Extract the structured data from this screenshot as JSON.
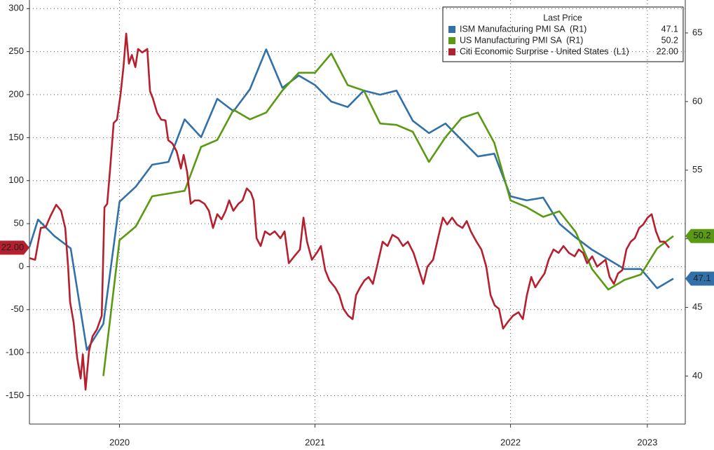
{
  "chart_data": {
    "type": "line",
    "legend_title": "Last Price",
    "legend": "upper right",
    "grid": true,
    "xlim": [
      2020.039,
      2023.394
    ],
    "xticks": [
      {
        "value": 2020.5,
        "label": "2020"
      },
      {
        "value": 2021.5,
        "label": "2021"
      },
      {
        "value": 2022.5,
        "label": "2022"
      },
      {
        "value": 2023.2,
        "label": "2023"
      }
    ],
    "ylim": [
      -183,
      310
    ],
    "yticks": [
      -150,
      -100,
      -50,
      0,
      50,
      100,
      150,
      200,
      250,
      300
    ],
    "y2lim": [
      36.5,
      67.4
    ],
    "y2ticks": [
      40,
      45,
      50,
      55,
      60,
      65
    ],
    "series": [
      {
        "name": "ISM Manufacturing PMI SA  (R1)",
        "color": "#3170a8",
        "axis": "y2",
        "last_price": 47.1,
        "x": [
          2020.039,
          2020.083,
          2020.167,
          2020.25,
          2020.333,
          2020.417,
          2020.5,
          2020.583,
          2020.667,
          2020.75,
          2020.833,
          2020.917,
          2021,
          2021.083,
          2021.167,
          2021.25,
          2021.333,
          2021.417,
          2021.5,
          2021.583,
          2021.667,
          2021.75,
          2021.833,
          2021.917,
          2022,
          2022.083,
          2022.167,
          2022.25,
          2022.333,
          2022.417,
          2022.5,
          2022.583,
          2022.667,
          2022.75,
          2022.833,
          2022.917,
          2023,
          2023.083,
          2023.167,
          2023.25,
          2023.333
        ],
        "values": [
          49.4,
          51.4,
          50.2,
          49.3,
          41.9,
          43.8,
          52.7,
          53.8,
          55.4,
          55.6,
          58.7,
          57.4,
          60.2,
          59.3,
          60.9,
          63.8,
          61.0,
          61.9,
          61.2,
          60.0,
          59.6,
          60.8,
          60.5,
          60.8,
          58.6,
          57.7,
          58.4,
          57.2,
          56.0,
          56.2,
          53.1,
          52.8,
          53.0,
          51.1,
          50.1,
          49.2,
          48.5,
          47.8,
          47.8,
          46.4,
          47.1
        ]
      },
      {
        "name": "US Manufacturing PMI SA  (R1)",
        "color": "#5a9a12",
        "axis": "y2",
        "last_price": 50.2,
        "x": [
          2020.417,
          2020.5,
          2020.583,
          2020.667,
          2020.75,
          2020.833,
          2020.917,
          2021,
          2021.083,
          2021.167,
          2021.25,
          2021.333,
          2021.417,
          2021.5,
          2021.583,
          2021.667,
          2021.75,
          2021.833,
          2021.917,
          2022,
          2022.083,
          2022.167,
          2022.25,
          2022.333,
          2022.417,
          2022.5,
          2022.583,
          2022.667,
          2022.75,
          2022.833,
          2022.917,
          2023,
          2023.083,
          2023.167,
          2023.25,
          2023.333
        ],
        "values": [
          40.0,
          49.9,
          50.9,
          53.1,
          53.3,
          53.5,
          56.7,
          57.2,
          59.4,
          58.7,
          59.2,
          60.8,
          62.1,
          62.1,
          63.5,
          61.2,
          60.8,
          58.4,
          58.3,
          57.8,
          55.6,
          57.4,
          58.8,
          59.2,
          57.0,
          52.8,
          52.3,
          51.6,
          52.0,
          50.5,
          47.8,
          46.3,
          47.0,
          47.4,
          49.3,
          50.2
        ]
      },
      {
        "name": "Citi Economic Surprise - United States  (L1)",
        "color": "#b51f2e",
        "axis": "y",
        "last_price": {
          "value": 22,
          "label": "22.00"
        },
        "x": [
          2020.039,
          2020.068,
          2020.097,
          2020.122,
          2020.147,
          2020.176,
          2020.201,
          2020.222,
          2020.237,
          2020.247,
          2020.265,
          2020.283,
          2020.301,
          2020.312,
          2020.326,
          2020.344,
          2020.362,
          2020.384,
          2020.409,
          2020.423,
          2020.437,
          2020.452,
          2020.47,
          2020.487,
          2020.505,
          2020.52,
          2020.534,
          2020.548,
          2020.563,
          2020.581,
          2020.595,
          2020.616,
          2020.642,
          2020.656,
          2020.67,
          2020.692,
          2020.713,
          2020.735,
          2020.749,
          2020.771,
          2020.792,
          2020.814,
          2020.828,
          2020.846,
          2020.864,
          2020.885,
          2020.907,
          2020.935,
          2020.957,
          2020.978,
          2021.0,
          2021.022,
          2021.043,
          2021.061,
          2021.082,
          2021.108,
          2021.129,
          2021.151,
          2021.172,
          2021.186,
          2021.201,
          2021.222,
          2021.244,
          2021.269,
          2021.294,
          2021.323,
          2021.344,
          2021.366,
          2021.394,
          2021.423,
          2021.441,
          2021.459,
          2021.484,
          2021.509,
          2021.53,
          2021.552,
          2021.573,
          2021.602,
          2021.624,
          2021.645,
          2021.67,
          2021.692,
          2021.71,
          2021.731,
          2021.753,
          2021.774,
          2021.796,
          2021.817,
          2021.846,
          2021.871,
          2021.896,
          2021.925,
          2021.95,
          2021.975,
          2022.004,
          2022.032,
          2022.054,
          2022.075,
          2022.104,
          2022.129,
          2022.154,
          2022.176,
          2022.201,
          2022.226,
          2022.254,
          2022.276,
          2022.297,
          2022.326,
          2022.351,
          2022.376,
          2022.398,
          2022.419,
          2022.441,
          2022.462,
          2022.487,
          2022.513,
          2022.541,
          2022.563,
          2022.584,
          2022.606,
          2022.627,
          2022.649,
          2022.674,
          2022.695,
          2022.72,
          2022.746,
          2022.771,
          2022.799,
          2022.828,
          2022.849,
          2022.871,
          2022.892,
          2022.918,
          2022.943,
          2022.964,
          2022.986,
          2023.007,
          2023.029,
          2023.05,
          2023.072,
          2023.093,
          2023.115,
          2023.136,
          2023.158,
          2023.179,
          2023.201,
          2023.222,
          2023.244,
          2023.265,
          2023.287,
          2023.312
        ],
        "values": [
          10,
          8,
          45,
          46,
          59,
          72,
          65,
          45,
          0,
          -41,
          -65,
          -106,
          -130,
          -102,
          -143,
          -98,
          -81,
          -73,
          -57,
          69,
          73,
          114,
          167,
          171,
          200,
          232,
          271,
          236,
          246,
          232,
          253,
          249,
          253,
          204,
          196,
          179,
          171,
          170,
          147,
          143,
          134,
          114,
          130,
          110,
          73,
          77,
          77,
          73,
          65,
          45,
          61,
          55,
          65,
          77,
          65,
          73,
          77,
          91,
          86,
          77,
          33,
          24,
          41,
          37,
          41,
          33,
          41,
          4,
          12,
          20,
          57,
          29,
          8,
          16,
          24,
          -4,
          -16,
          -24,
          -33,
          -49,
          -57,
          -61,
          -33,
          -24,
          -16,
          -12,
          -20,
          0,
          29,
          24,
          37,
          33,
          24,
          29,
          16,
          -4,
          -20,
          0,
          8,
          33,
          57,
          49,
          57,
          49,
          45,
          53,
          41,
          29,
          20,
          0,
          -33,
          -45,
          -49,
          -72,
          -64,
          -57,
          -53,
          -61,
          -33,
          -12,
          -24,
          -16,
          -8,
          8,
          20,
          16,
          24,
          16,
          12,
          20,
          16,
          4,
          12,
          0,
          4,
          8,
          -12,
          -20,
          -8,
          -4,
          20,
          29,
          33,
          45,
          49,
          57,
          61,
          41,
          29,
          29,
          22
        ]
      }
    ]
  }
}
